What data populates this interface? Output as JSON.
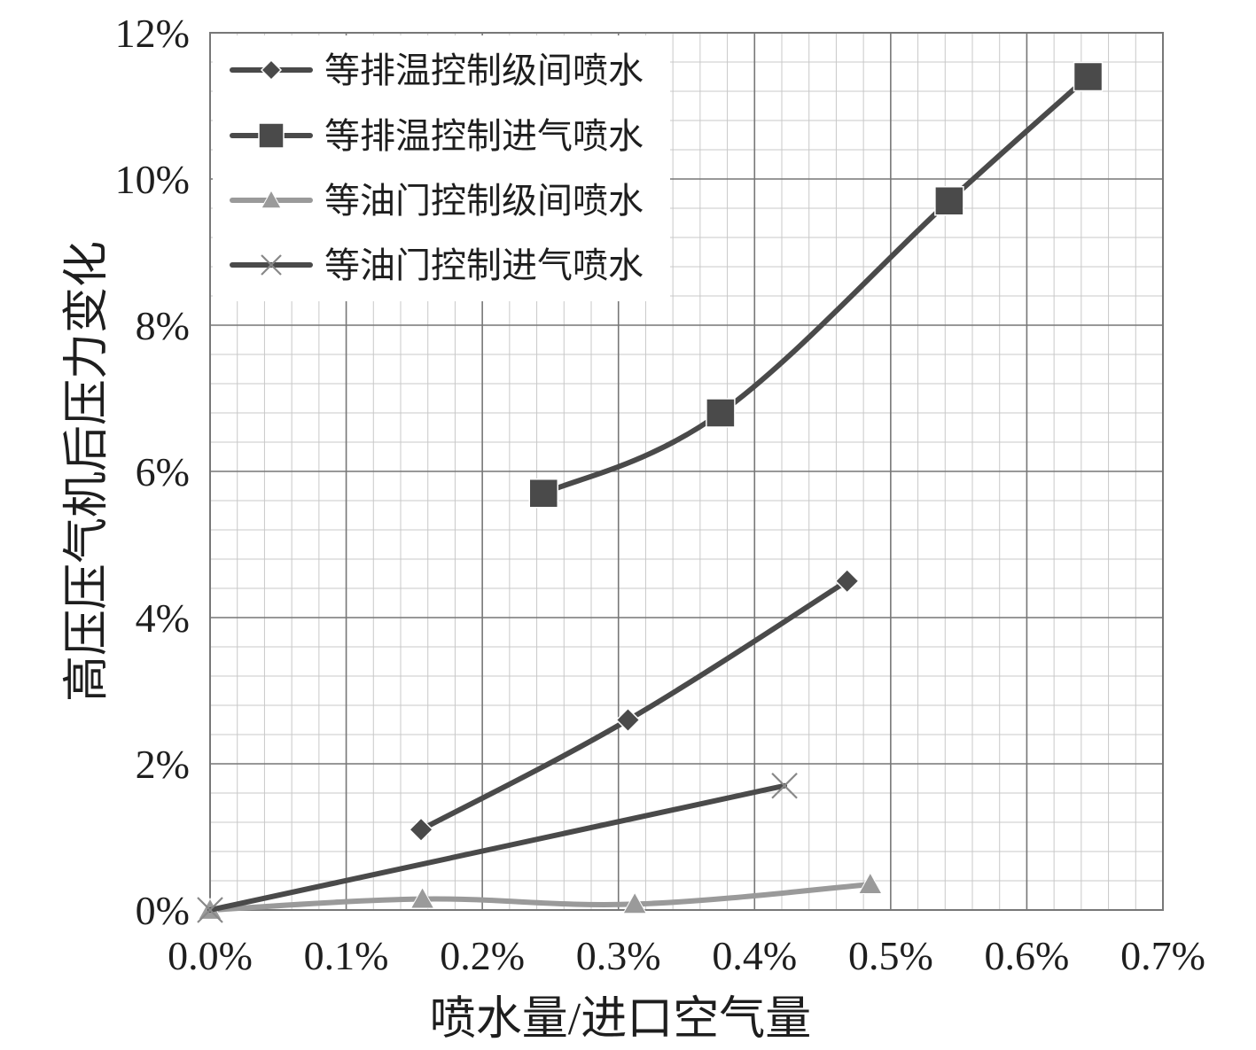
{
  "chart_data": {
    "type": "line",
    "title": "",
    "xlabel": "喷水量/进口空气量",
    "ylabel": "高压压气机后压力变化",
    "x_ticks": [
      "0.0%",
      "0.1%",
      "0.2%",
      "0.3%",
      "0.4%",
      "0.5%",
      "0.6%",
      "0.7%"
    ],
    "y_ticks": [
      "0%",
      "2%",
      "4%",
      "6%",
      "8%",
      "10%",
      "12%"
    ],
    "xlim": [
      0,
      0.7
    ],
    "ylim": [
      0,
      12
    ],
    "grid": true,
    "legend_position": "top-left",
    "series": [
      {
        "name": "等排温控制级间喷水",
        "marker": "diamond",
        "color": "#4a4a4a",
        "points": [
          [
            0.155,
            1.1
          ],
          [
            0.307,
            2.6
          ],
          [
            0.468,
            4.5
          ]
        ]
      },
      {
        "name": "等排温控制进气喷水",
        "marker": "square",
        "color": "#4a4a4a",
        "points": [
          [
            0.245,
            5.7
          ],
          [
            0.375,
            6.8
          ],
          [
            0.543,
            9.7
          ],
          [
            0.645,
            11.4
          ]
        ]
      },
      {
        "name": "等油门控制级间喷水",
        "marker": "triangle",
        "color": "#9a9a9a",
        "points": [
          [
            0.0,
            0.0
          ],
          [
            0.156,
            0.15
          ],
          [
            0.312,
            0.08
          ],
          [
            0.485,
            0.35
          ]
        ]
      },
      {
        "name": "等油门控制进气喷水",
        "marker": "x",
        "color": "#4a4a4a",
        "points": [
          [
            0.0,
            0.0
          ],
          [
            0.422,
            1.7
          ]
        ]
      }
    ]
  }
}
